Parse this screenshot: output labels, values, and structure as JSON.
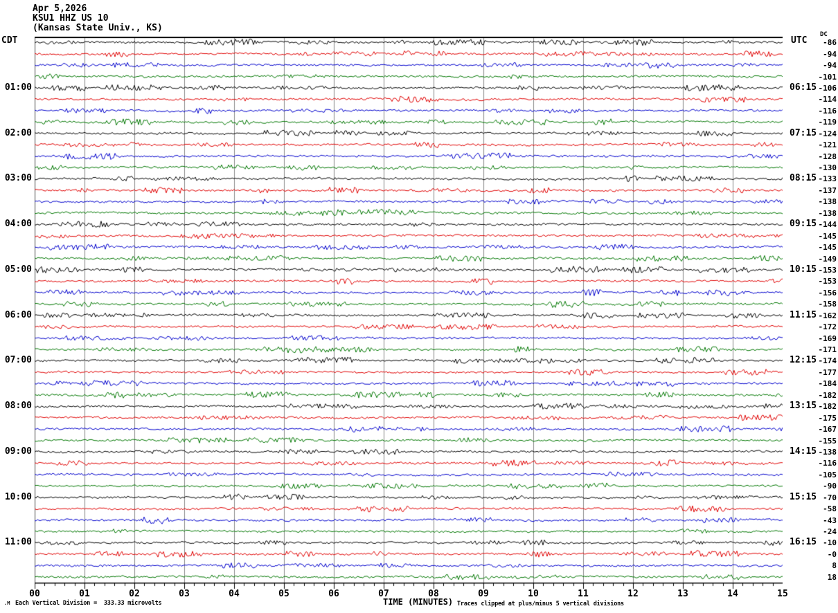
{
  "header": {
    "date": "Apr 5,2026",
    "station": "KSU1 HHZ US 10",
    "location": "(Kansas State Univ., KS)"
  },
  "axes": {
    "left_header": "CDT",
    "right_header": "UTC",
    "dc_header": "DC",
    "x_ticks": [
      "00",
      "01",
      "02",
      "03",
      "04",
      "05",
      "06",
      "07",
      "08",
      "09",
      "10",
      "11",
      "12",
      "13",
      "14",
      "15"
    ],
    "left_times": [
      {
        "row": 4,
        "label": "01:00"
      },
      {
        "row": 8,
        "label": "02:00"
      },
      {
        "row": 12,
        "label": "03:00"
      },
      {
        "row": 16,
        "label": "04:00"
      },
      {
        "row": 20,
        "label": "05:00"
      },
      {
        "row": 24,
        "label": "06:00"
      },
      {
        "row": 28,
        "label": "07:00"
      },
      {
        "row": 32,
        "label": "08:00"
      },
      {
        "row": 36,
        "label": "09:00"
      },
      {
        "row": 40,
        "label": "10:00"
      },
      {
        "row": 44,
        "label": "11:00"
      }
    ],
    "right_times": [
      {
        "row": 4,
        "label": "06:15"
      },
      {
        "row": 8,
        "label": "07:15"
      },
      {
        "row": 12,
        "label": "08:15"
      },
      {
        "row": 16,
        "label": "09:15"
      },
      {
        "row": 20,
        "label": "10:15"
      },
      {
        "row": 24,
        "label": "11:15"
      },
      {
        "row": 28,
        "label": "12:15"
      },
      {
        "row": 32,
        "label": "13:15"
      },
      {
        "row": 36,
        "label": "14:15"
      },
      {
        "row": 40,
        "label": "15:15"
      },
      {
        "row": 44,
        "label": "16:15"
      }
    ],
    "dc_values": [
      "-86",
      "-94",
      "-94",
      "-101",
      "-106",
      "-114",
      "-116",
      "-119",
      "-124",
      "-121",
      "-128",
      "-130",
      "-133",
      "-137",
      "-138",
      "-138",
      "-144",
      "-145",
      "-145",
      "-149",
      "-153",
      "-153",
      "-156",
      "-158",
      "-162",
      "-172",
      "-169",
      "-171",
      "-174",
      "-177",
      "-184",
      "-182",
      "-182",
      "-175",
      "-167",
      "-155",
      "-138",
      "-116",
      "-105",
      "-90",
      "-70",
      "-58",
      "-43",
      "-24",
      "-10",
      "-0",
      "8",
      "18"
    ]
  },
  "footer": {
    "watermark": ".M",
    "scale_note": "Each Vertical Division =  333.33 microvolts",
    "x_title": "TIME (MINUTES)",
    "clip_note": "Traces clipped at plus/minus 5 vertical divisions"
  },
  "chart_data": {
    "type": "line",
    "title": "KSU1 HHZ US 10 (Kansas State Univ., KS) helicorder, Apr 5,2026",
    "xlabel": "TIME (MINUTES)",
    "x_range": [
      0,
      15
    ],
    "x_major_tick": 1,
    "x_minor_tick": 0.2,
    "rows": 48,
    "minutes_per_row": 15,
    "left_time_zone": "CDT",
    "right_time_zone": "UTC",
    "colors_cycle": [
      "#000000",
      "#e00000",
      "#0000cc",
      "#007700"
    ],
    "grid_color": "#888888",
    "row_start_times_cdt": [
      "00:00",
      "00:15",
      "00:30",
      "00:45",
      "01:00",
      "01:15",
      "01:30",
      "01:45",
      "02:00",
      "02:15",
      "02:30",
      "02:45",
      "03:00",
      "03:15",
      "03:30",
      "03:45",
      "04:00",
      "04:15",
      "04:30",
      "04:45",
      "05:00",
      "05:15",
      "05:30",
      "05:45",
      "06:00",
      "06:15",
      "06:30",
      "06:45",
      "07:00",
      "07:15",
      "07:30",
      "07:45",
      "08:00",
      "08:15",
      "08:30",
      "08:45",
      "09:00",
      "09:15",
      "09:30",
      "09:45",
      "10:00",
      "10:15",
      "10:30",
      "10:45",
      "11:00",
      "11:15",
      "11:30",
      "11:45"
    ],
    "dc_offsets": [
      -86,
      -94,
      -94,
      -101,
      -106,
      -114,
      -116,
      -119,
      -124,
      -121,
      -128,
      -130,
      -133,
      -137,
      -138,
      -138,
      -144,
      -145,
      -145,
      -149,
      -153,
      -153,
      -156,
      -158,
      -162,
      -172,
      -169,
      -171,
      -174,
      -177,
      -184,
      -182,
      -182,
      -175,
      -167,
      -155,
      -138,
      -116,
      -105,
      -90,
      -70,
      -58,
      -43,
      -24,
      -10,
      0,
      8,
      18
    ],
    "scale_microvolts_per_division": 333.33,
    "clip_divisions": 5,
    "series_note": "48 fifteen-minute traces of ambient seismic background noise; small burst on the 10:30 CDT (blue) trace near minute 2.2"
  }
}
